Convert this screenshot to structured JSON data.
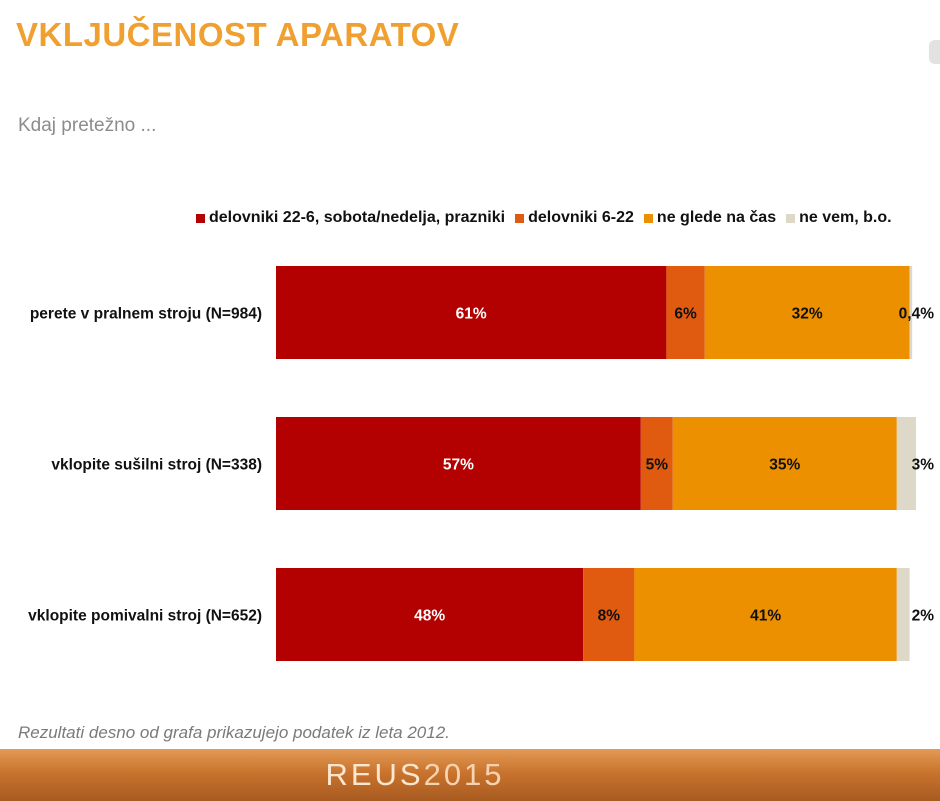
{
  "title": "VKLJUČENOST APARATOV",
  "subtitle": "Kdaj pretežno ...",
  "footnote": "Rezultati desno od grafa prikazujejo podatek iz leta 2012.",
  "footer": {
    "brand_bold": "REUS",
    "brand_light": "2015"
  },
  "colors": {
    "series": [
      "#b30000",
      "#e05a10",
      "#ec9000",
      "#ddd8c8"
    ],
    "title": "#f0a030"
  },
  "chart_data": {
    "type": "bar",
    "orientation": "horizontal",
    "stacked": true,
    "categories": [
      "perete v pralnem stroju (N=984)",
      "vklopite sušilni stroj (N=338)",
      "vklopite pomivalni stroj (N=652)"
    ],
    "series": [
      {
        "name": "delovniki 22-6, sobota/nedelja, prazniki",
        "values": [
          61,
          57,
          48
        ],
        "labels": [
          "61%",
          "57%",
          "48%"
        ]
      },
      {
        "name": "delovniki 6-22",
        "values": [
          6,
          5,
          8
        ],
        "labels": [
          "6%",
          "5%",
          "8%"
        ]
      },
      {
        "name": "ne glede na čas",
        "values": [
          32,
          35,
          41
        ],
        "labels": [
          "32%",
          "35%",
          "41%"
        ]
      },
      {
        "name": "ne vem, b.o.",
        "values": [
          0.4,
          3,
          2
        ],
        "labels": [
          "0,4%",
          "3%",
          "2%"
        ]
      }
    ],
    "xlim": [
      0,
      100
    ],
    "legend_position": "top"
  }
}
